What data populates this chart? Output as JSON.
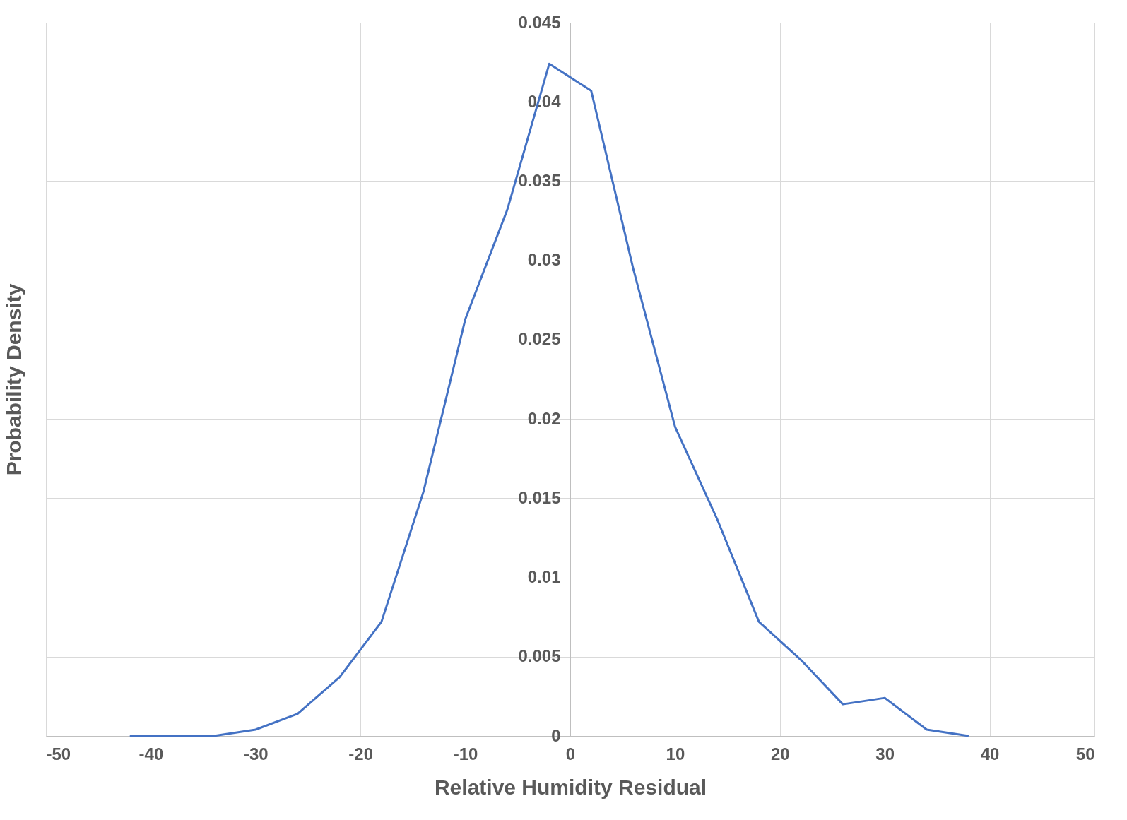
{
  "chart_data": {
    "type": "line",
    "xlabel": "Relative Humidity Residual",
    "ylabel": "Probability Density",
    "x": [
      -42,
      -38,
      -34,
      -30,
      -26,
      -22,
      -18,
      -14,
      -10,
      -6,
      -2,
      2,
      6,
      10,
      14,
      18,
      22,
      26,
      30,
      34,
      38
    ],
    "series": [
      {
        "color": "#4472c4",
        "values": [
          0,
          0,
          0,
          0.0004,
          0.0014,
          0.0037,
          0.0072,
          0.0154,
          0.0263,
          0.0332,
          0.0424,
          0.0407,
          0.0295,
          0.0195,
          0.0137,
          0.0072,
          0.0048,
          0.002,
          0.0024,
          0.0004,
          0
        ]
      }
    ],
    "xlim": [
      -50,
      50
    ],
    "xticks": [
      -50,
      -40,
      -30,
      -20,
      -10,
      0,
      10,
      20,
      30,
      40,
      50
    ],
    "ylim": [
      0,
      0.045
    ],
    "yticks": [
      0,
      0.005,
      0.01,
      0.015,
      0.02,
      0.025,
      0.03,
      0.035,
      0.04,
      0.045
    ],
    "grid": true,
    "marker": "none",
    "line_style": "solid"
  }
}
